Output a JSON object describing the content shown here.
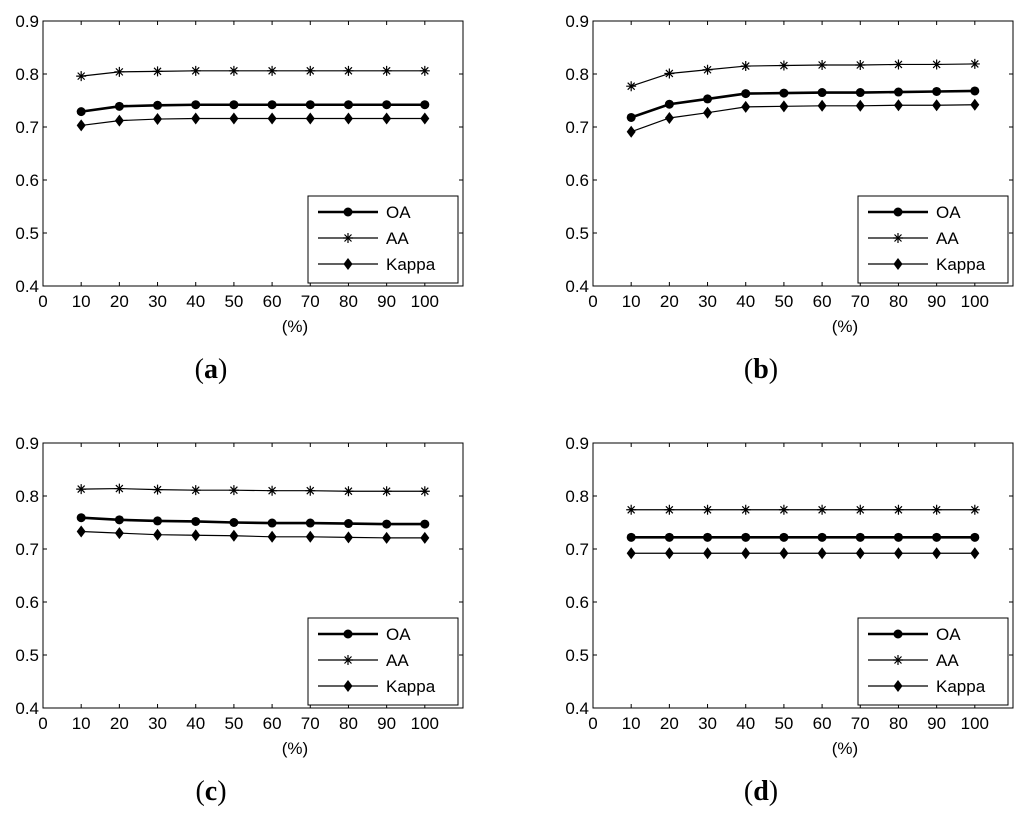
{
  "chart_data": [
    {
      "type": "line",
      "panel": "a",
      "caption": "a",
      "xlabel": "(%)",
      "xlim": [
        0,
        110
      ],
      "ylim": [
        0.4,
        0.9
      ],
      "xticks": [
        0,
        10,
        20,
        30,
        40,
        50,
        60,
        70,
        80,
        90,
        100
      ],
      "yticks": [
        0.4,
        0.5,
        0.6,
        0.7,
        0.8,
        0.9
      ],
      "legend_position": "bottom-right",
      "x": [
        10,
        20,
        30,
        40,
        50,
        60,
        70,
        80,
        90,
        100
      ],
      "series": [
        {
          "name": "OA",
          "marker": "circle",
          "values": [
            0.729,
            0.739,
            0.741,
            0.742,
            0.742,
            0.742,
            0.742,
            0.742,
            0.742,
            0.742
          ]
        },
        {
          "name": "AA",
          "marker": "star",
          "values": [
            0.796,
            0.804,
            0.805,
            0.806,
            0.806,
            0.806,
            0.806,
            0.806,
            0.806,
            0.806
          ]
        },
        {
          "name": "Kappa",
          "marker": "diamond",
          "values": [
            0.703,
            0.712,
            0.715,
            0.716,
            0.716,
            0.716,
            0.716,
            0.716,
            0.716,
            0.716
          ]
        }
      ]
    },
    {
      "type": "line",
      "panel": "b",
      "caption": "b",
      "xlabel": "(%)",
      "xlim": [
        0,
        110
      ],
      "ylim": [
        0.4,
        0.9
      ],
      "xticks": [
        0,
        10,
        20,
        30,
        40,
        50,
        60,
        70,
        80,
        90,
        100
      ],
      "yticks": [
        0.4,
        0.5,
        0.6,
        0.7,
        0.8,
        0.9
      ],
      "legend_position": "bottom-right",
      "x": [
        10,
        20,
        30,
        40,
        50,
        60,
        70,
        80,
        90,
        100
      ],
      "series": [
        {
          "name": "OA",
          "marker": "circle",
          "values": [
            0.718,
            0.743,
            0.753,
            0.763,
            0.764,
            0.765,
            0.765,
            0.766,
            0.767,
            0.768
          ]
        },
        {
          "name": "AA",
          "marker": "star",
          "values": [
            0.777,
            0.801,
            0.808,
            0.815,
            0.816,
            0.817,
            0.817,
            0.818,
            0.818,
            0.819
          ]
        },
        {
          "name": "Kappa",
          "marker": "diamond",
          "values": [
            0.691,
            0.717,
            0.727,
            0.738,
            0.739,
            0.74,
            0.74,
            0.741,
            0.741,
            0.742
          ]
        }
      ]
    },
    {
      "type": "line",
      "panel": "c",
      "caption": "c",
      "xlabel": "(%)",
      "xlim": [
        0,
        110
      ],
      "ylim": [
        0.4,
        0.9
      ],
      "xticks": [
        0,
        10,
        20,
        30,
        40,
        50,
        60,
        70,
        80,
        90,
        100
      ],
      "yticks": [
        0.4,
        0.5,
        0.6,
        0.7,
        0.8,
        0.9
      ],
      "legend_position": "bottom-right",
      "x": [
        10,
        20,
        30,
        40,
        50,
        60,
        70,
        80,
        90,
        100
      ],
      "series": [
        {
          "name": "OA",
          "marker": "circle",
          "values": [
            0.759,
            0.755,
            0.753,
            0.752,
            0.75,
            0.749,
            0.749,
            0.748,
            0.747,
            0.747
          ]
        },
        {
          "name": "AA",
          "marker": "star",
          "values": [
            0.813,
            0.814,
            0.812,
            0.811,
            0.811,
            0.81,
            0.81,
            0.809,
            0.809,
            0.809
          ]
        },
        {
          "name": "Kappa",
          "marker": "diamond",
          "values": [
            0.733,
            0.73,
            0.727,
            0.726,
            0.725,
            0.723,
            0.723,
            0.722,
            0.721,
            0.721
          ]
        }
      ]
    },
    {
      "type": "line",
      "panel": "d",
      "caption": "d",
      "xlabel": "(%)",
      "xlim": [
        0,
        110
      ],
      "ylim": [
        0.4,
        0.9
      ],
      "xticks": [
        0,
        10,
        20,
        30,
        40,
        50,
        60,
        70,
        80,
        90,
        100
      ],
      "yticks": [
        0.4,
        0.5,
        0.6,
        0.7,
        0.8,
        0.9
      ],
      "legend_position": "bottom-right",
      "x": [
        10,
        20,
        30,
        40,
        50,
        60,
        70,
        80,
        90,
        100
      ],
      "series": [
        {
          "name": "OA",
          "marker": "circle",
          "values": [
            0.722,
            0.722,
            0.722,
            0.722,
            0.722,
            0.722,
            0.722,
            0.722,
            0.722,
            0.722
          ]
        },
        {
          "name": "AA",
          "marker": "star",
          "values": [
            0.774,
            0.774,
            0.774,
            0.774,
            0.774,
            0.774,
            0.774,
            0.774,
            0.774,
            0.774
          ]
        },
        {
          "name": "Kappa",
          "marker": "diamond",
          "values": [
            0.692,
            0.692,
            0.692,
            0.692,
            0.692,
            0.692,
            0.692,
            0.692,
            0.692,
            0.692
          ]
        }
      ]
    }
  ]
}
